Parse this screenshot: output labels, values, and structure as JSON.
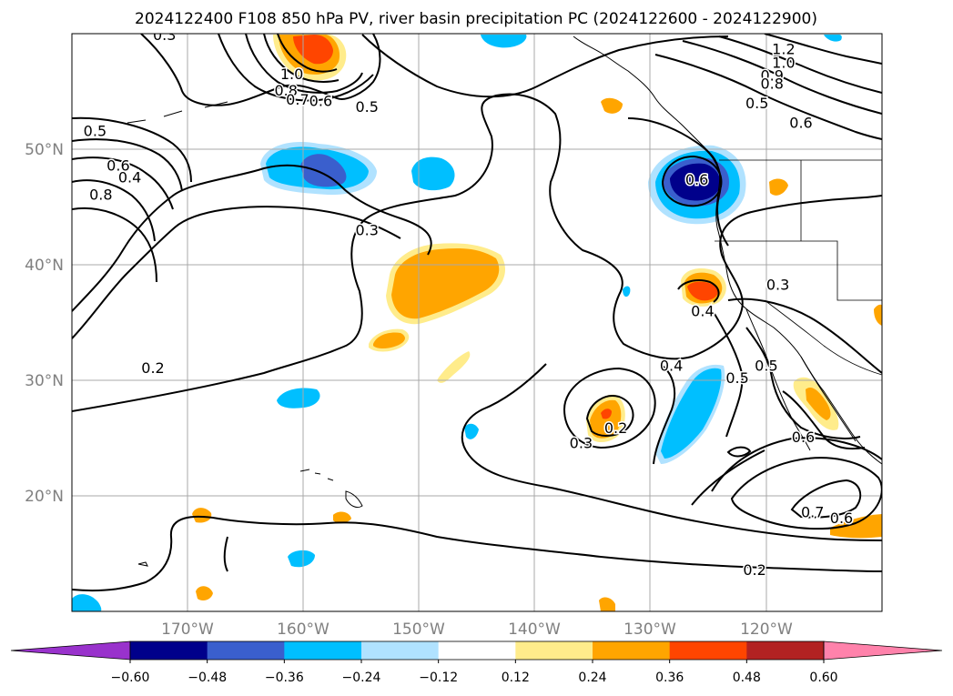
{
  "title": "2024122400 F108 850 hPa PV, river basin precipitation PC (2024122600 - 2024122900)",
  "map": {
    "lon_range": [
      -180,
      -110
    ],
    "lat_range": [
      10,
      60
    ],
    "lon_ticks": [
      {
        "lon": -170,
        "label": "170°W"
      },
      {
        "lon": -160,
        "label": "160°W"
      },
      {
        "lon": -150,
        "label": "150°W"
      },
      {
        "lon": -140,
        "label": "140°W"
      },
      {
        "lon": -130,
        "label": "130°W"
      },
      {
        "lon": -120,
        "label": "120°W"
      }
    ],
    "lat_ticks": [
      {
        "lat": 20,
        "label": "20°N"
      },
      {
        "lat": 30,
        "label": "30°N"
      },
      {
        "lat": 40,
        "label": "40°N"
      },
      {
        "lat": 50,
        "label": "50°N"
      }
    ],
    "contour_labels": [
      {
        "lon": -172,
        "lat": 59.8,
        "text": "0.3"
      },
      {
        "lon": -178,
        "lat": 51.5,
        "text": "0.5"
      },
      {
        "lon": -176,
        "lat": 48.5,
        "text": "0.6"
      },
      {
        "lon": -175,
        "lat": 47.5,
        "text": "0.4"
      },
      {
        "lon": -177.5,
        "lat": 46.0,
        "text": "0.8"
      },
      {
        "lon": -161,
        "lat": 56.4,
        "text": "1.0"
      },
      {
        "lon": -161.5,
        "lat": 55.0,
        "text": "0.8"
      },
      {
        "lon": -160.5,
        "lat": 54.2,
        "text": "0.7"
      },
      {
        "lon": -158.5,
        "lat": 54.1,
        "text": "0.6"
      },
      {
        "lon": -154.5,
        "lat": 53.6,
        "text": "0.5"
      },
      {
        "lon": -154.5,
        "lat": 42.9,
        "text": "0.3"
      },
      {
        "lon": -173.0,
        "lat": 31.0,
        "text": "0.2"
      },
      {
        "lon": -118.5,
        "lat": 58.6,
        "text": "1.2"
      },
      {
        "lon": -118.5,
        "lat": 57.4,
        "text": "1.0"
      },
      {
        "lon": -119.5,
        "lat": 56.3,
        "text": "0.9"
      },
      {
        "lon": -119.5,
        "lat": 55.6,
        "text": "0.8"
      },
      {
        "lon": -120.8,
        "lat": 53.9,
        "text": "0.5"
      },
      {
        "lon": -117.0,
        "lat": 52.2,
        "text": "0.6"
      },
      {
        "lon": -126.0,
        "lat": 47.3,
        "text": "0.6"
      },
      {
        "lon": -119.0,
        "lat": 38.2,
        "text": "0.3"
      },
      {
        "lon": -125.5,
        "lat": 35.9,
        "text": "0.4"
      },
      {
        "lon": -128.2,
        "lat": 31.2,
        "text": "0.4"
      },
      {
        "lon": -122.5,
        "lat": 30.1,
        "text": "0.5"
      },
      {
        "lon": -120.0,
        "lat": 31.2,
        "text": "0.5"
      },
      {
        "lon": -116.8,
        "lat": 25.0,
        "text": "0.6"
      },
      {
        "lon": -133.0,
        "lat": 25.8,
        "text": "0.2"
      },
      {
        "lon": -136.0,
        "lat": 24.5,
        "text": "0.3"
      },
      {
        "lon": -116.0,
        "lat": 18.5,
        "text": "0.7"
      },
      {
        "lon": -113.5,
        "lat": 18.0,
        "text": "0.6"
      },
      {
        "lon": -121.0,
        "lat": 13.5,
        "text": "0.2"
      }
    ]
  },
  "colorbar": {
    "levels": [
      -0.6,
      -0.48,
      -0.36,
      -0.24,
      -0.12,
      0.12,
      0.24,
      0.36,
      0.48,
      0.6
    ],
    "labels": [
      "−0.60",
      "−0.48",
      "−0.36",
      "−0.24",
      "−0.12",
      "0.12",
      "0.24",
      "0.36",
      "0.48",
      "0.60"
    ],
    "colors": [
      "#9932cc",
      "#00008b",
      "#3a5fcd",
      "#00bfff",
      "#b0e2ff",
      "#ffffff",
      "#ffec8b",
      "#ffa500",
      "#ff4500",
      "#b22222",
      "#ff82ab"
    ]
  }
}
